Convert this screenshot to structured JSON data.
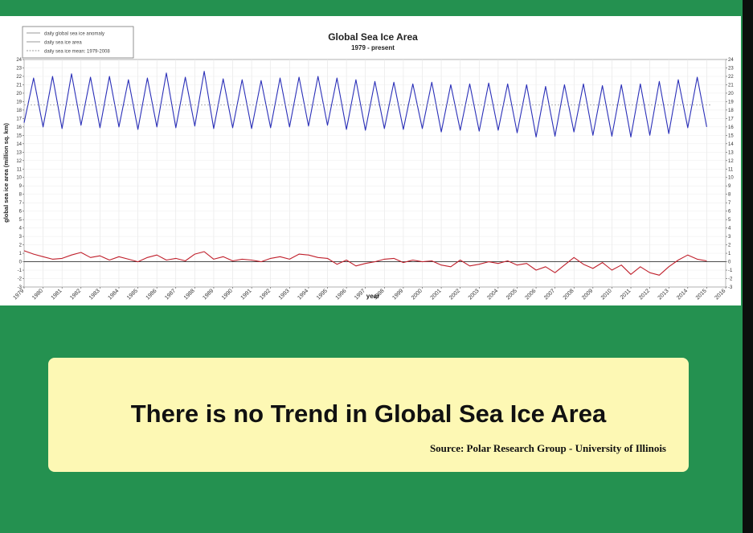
{
  "chart_data": {
    "type": "line",
    "title": "Global Sea Ice Area",
    "subtitle": "1979 - present",
    "xlabel": "year",
    "ylabel": "global sea ice area (million sq. km)",
    "xlim": [
      1979,
      2016
    ],
    "ylim": [
      -3,
      24
    ],
    "x_ticks": [
      "1979",
      "1980",
      "1981",
      "1982",
      "1983",
      "1984",
      "1985",
      "1986",
      "1987",
      "1988",
      "1989",
      "1990",
      "1991",
      "1992",
      "1993",
      "1994",
      "1995",
      "1996",
      "1997",
      "1998",
      "1999",
      "2000",
      "2001",
      "2002",
      "2003",
      "2004",
      "2005",
      "2006",
      "2007",
      "2008",
      "2009",
      "2010",
      "2011",
      "2012",
      "2013",
      "2014",
      "2015",
      "2016"
    ],
    "y_ticks": [
      "-3",
      "-2",
      "-1",
      "0",
      "1",
      "2",
      "3",
      "4",
      "5",
      "6",
      "7",
      "8",
      "9",
      "10",
      "11",
      "12",
      "13",
      "14",
      "15",
      "16",
      "17",
      "18",
      "19",
      "20",
      "21",
      "22",
      "23",
      "24"
    ],
    "legend_placement": "top-left",
    "grid": true,
    "series": [
      {
        "name": "daily global sea ice anomaly",
        "color": "#c0202c",
        "x": [
          1979.0,
          1979.5,
          1980.0,
          1980.5,
          1981.0,
          1981.5,
          1982.0,
          1982.5,
          1983.0,
          1983.5,
          1984.0,
          1984.5,
          1985.0,
          1985.5,
          1986.0,
          1986.5,
          1987.0,
          1987.5,
          1988.0,
          1988.5,
          1989.0,
          1989.5,
          1990.0,
          1990.5,
          1991.0,
          1991.5,
          1992.0,
          1992.5,
          1993.0,
          1993.5,
          1994.0,
          1994.5,
          1995.0,
          1995.5,
          1996.0,
          1996.5,
          1997.0,
          1997.5,
          1998.0,
          1998.5,
          1999.0,
          1999.5,
          2000.0,
          2000.5,
          2001.0,
          2001.5,
          2002.0,
          2002.5,
          2003.0,
          2003.5,
          2004.0,
          2004.5,
          2005.0,
          2005.5,
          2006.0,
          2006.5,
          2007.0,
          2007.5,
          2008.0,
          2008.5,
          2009.0,
          2009.5,
          2010.0,
          2010.5,
          2011.0,
          2011.5,
          2012.0,
          2012.5,
          2013.0,
          2013.5,
          2014.0,
          2014.5,
          2015.0
        ],
        "values": [
          1.3,
          0.9,
          0.6,
          0.3,
          0.4,
          0.8,
          1.1,
          0.5,
          0.7,
          0.2,
          0.6,
          0.3,
          0.0,
          0.5,
          0.8,
          0.2,
          0.4,
          0.1,
          0.9,
          1.2,
          0.3,
          0.6,
          0.1,
          0.3,
          0.2,
          0.0,
          0.4,
          0.6,
          0.3,
          0.9,
          0.8,
          0.5,
          0.4,
          -0.3,
          0.2,
          -0.5,
          -0.2,
          0.0,
          0.3,
          0.4,
          -0.1,
          0.2,
          0.0,
          0.1,
          -0.4,
          -0.6,
          0.2,
          -0.5,
          -0.3,
          0.0,
          -0.2,
          0.1,
          -0.4,
          -0.2,
          -1.0,
          -0.6,
          -1.3,
          -0.4,
          0.5,
          -0.3,
          -0.8,
          -0.1,
          -1.0,
          -0.4,
          -1.5,
          -0.6,
          -1.3,
          -1.6,
          -0.6,
          0.2,
          0.8,
          0.3,
          0.1
        ]
      },
      {
        "name": "daily sea ice area",
        "color": "#2a2fb8",
        "x": [
          1979.0,
          1979.5,
          1980.0,
          1980.5,
          1981.0,
          1981.5,
          1982.0,
          1982.5,
          1983.0,
          1983.5,
          1984.0,
          1984.5,
          1985.0,
          1985.5,
          1986.0,
          1986.5,
          1987.0,
          1987.5,
          1988.0,
          1988.5,
          1989.0,
          1989.5,
          1990.0,
          1990.5,
          1991.0,
          1991.5,
          1992.0,
          1992.5,
          1993.0,
          1993.5,
          1994.0,
          1994.5,
          1995.0,
          1995.5,
          1996.0,
          1996.5,
          1997.0,
          1997.5,
          1998.0,
          1998.5,
          1999.0,
          1999.5,
          2000.0,
          2000.5,
          2001.0,
          2001.5,
          2002.0,
          2002.5,
          2003.0,
          2003.5,
          2004.0,
          2004.5,
          2005.0,
          2005.5,
          2006.0,
          2006.5,
          2007.0,
          2007.5,
          2008.0,
          2008.5,
          2009.0,
          2009.5,
          2010.0,
          2010.5,
          2011.0,
          2011.5,
          2012.0,
          2012.5,
          2013.0,
          2013.5,
          2014.0,
          2014.5,
          2015.0
        ],
        "values": [
          16.5,
          21.8,
          16.0,
          22.0,
          15.8,
          22.3,
          16.2,
          21.9,
          15.9,
          22.0,
          16.0,
          21.6,
          15.7,
          21.8,
          16.0,
          22.4,
          15.9,
          21.9,
          16.1,
          22.6,
          15.8,
          21.7,
          15.9,
          21.6,
          15.8,
          21.5,
          15.9,
          21.8,
          16.0,
          21.9,
          16.1,
          22.0,
          16.2,
          21.8,
          15.7,
          21.6,
          15.6,
          21.4,
          15.8,
          21.3,
          15.7,
          21.1,
          15.8,
          21.3,
          15.4,
          21.0,
          15.6,
          21.1,
          15.5,
          21.2,
          15.6,
          21.1,
          15.3,
          21.0,
          14.8,
          20.8,
          14.9,
          21.0,
          15.4,
          21.1,
          15.0,
          20.9,
          14.9,
          21.0,
          14.8,
          21.1,
          15.0,
          21.4,
          15.2,
          21.6,
          15.9,
          21.9,
          16.0
        ]
      },
      {
        "name": "daily sea ice mean: 1979-2008",
        "color": "#9a9a9a",
        "x": [
          1979,
          2015.2
        ],
        "values": [
          18.6,
          18.6
        ]
      }
    ],
    "baseline": 0
  },
  "caption": {
    "headline": "There is no Trend in Global Sea Ice Area",
    "source": "Source: Polar Research Group - University of Illinois"
  },
  "colors": {
    "background": "#249150",
    "panel": "#ffffff",
    "caption_box": "#fdf8b4"
  }
}
